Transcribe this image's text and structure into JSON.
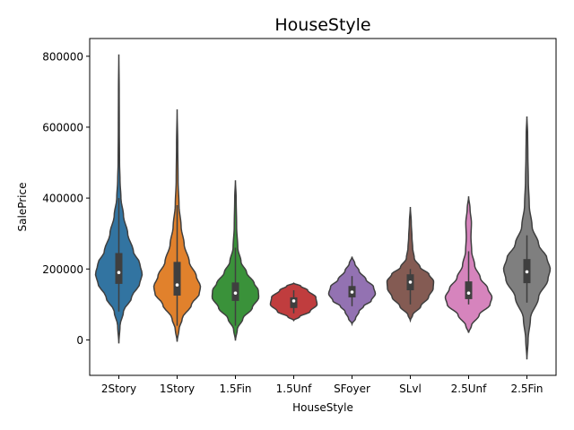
{
  "chart_data": {
    "type": "violin",
    "title": "HouseStyle",
    "xlabel": "HouseStyle",
    "ylabel": "SalePrice",
    "ylim": [
      -100000,
      850000
    ],
    "yticks": [
      0,
      200000,
      400000,
      600000,
      800000
    ],
    "ytick_labels": [
      "0",
      "200000",
      "400000",
      "600000",
      "800000"
    ],
    "grid": false,
    "legend": "none",
    "categories": [
      "2Story",
      "1Story",
      "1.5Fin",
      "1.5Unf",
      "SFoyer",
      "SLvl",
      "2.5Unf",
      "2.5Fin"
    ],
    "colors": [
      "#3274a1",
      "#e1812c",
      "#3a923a",
      "#c03d3e",
      "#9372b2",
      "#845b53",
      "#d684bd",
      "#7f7f7f"
    ],
    "violins": [
      {
        "min": -10000,
        "max": 805000,
        "q1": 158000,
        "median": 190000,
        "q3": 245000,
        "wlo": 80000,
        "whi": 400000,
        "profile": [
          [
            -10000,
            0
          ],
          [
            40000,
            0.05
          ],
          [
            80000,
            0.2
          ],
          [
            120000,
            0.55
          ],
          [
            160000,
            0.9
          ],
          [
            185000,
            1.0
          ],
          [
            215000,
            0.9
          ],
          [
            250000,
            0.62
          ],
          [
            300000,
            0.38
          ],
          [
            350000,
            0.2
          ],
          [
            400000,
            0.09
          ],
          [
            450000,
            0.05
          ],
          [
            500000,
            0.03
          ],
          [
            600000,
            0.02
          ],
          [
            700000,
            0.015
          ],
          [
            805000,
            0
          ]
        ]
      },
      {
        "min": -5000,
        "max": 650000,
        "q1": 125000,
        "median": 155000,
        "q3": 220000,
        "wlo": 40000,
        "whi": 380000,
        "profile": [
          [
            -5000,
            0
          ],
          [
            30000,
            0.08
          ],
          [
            60000,
            0.22
          ],
          [
            100000,
            0.62
          ],
          [
            130000,
            0.95
          ],
          [
            150000,
            1.0
          ],
          [
            180000,
            0.82
          ],
          [
            220000,
            0.52
          ],
          [
            270000,
            0.3
          ],
          [
            320000,
            0.17
          ],
          [
            380000,
            0.08
          ],
          [
            450000,
            0.04
          ],
          [
            550000,
            0.025
          ],
          [
            650000,
            0
          ]
        ]
      },
      {
        "min": -2000,
        "max": 450000,
        "q1": 110000,
        "median": 132000,
        "q3": 162000,
        "wlo": 40000,
        "whi": 260000,
        "profile": [
          [
            -2000,
            0
          ],
          [
            30000,
            0.08
          ],
          [
            60000,
            0.32
          ],
          [
            90000,
            0.72
          ],
          [
            120000,
            1.0
          ],
          [
            140000,
            0.98
          ],
          [
            160000,
            0.8
          ],
          [
            190000,
            0.48
          ],
          [
            220000,
            0.24
          ],
          [
            260000,
            0.1
          ],
          [
            320000,
            0.05
          ],
          [
            400000,
            0.03
          ],
          [
            450000,
            0
          ]
        ]
      },
      {
        "min": 55000,
        "max": 160000,
        "q1": 90000,
        "median": 110000,
        "q3": 120000,
        "wlo": 75000,
        "whi": 140000,
        "profile": [
          [
            55000,
            0
          ],
          [
            65000,
            0.25
          ],
          [
            80000,
            0.7
          ],
          [
            100000,
            1.0
          ],
          [
            120000,
            0.95
          ],
          [
            140000,
            0.6
          ],
          [
            152000,
            0.3
          ],
          [
            160000,
            0
          ]
        ]
      },
      {
        "min": 45000,
        "max": 235000,
        "q1": 120000,
        "median": 135000,
        "q3": 152000,
        "wlo": 95000,
        "whi": 180000,
        "profile": [
          [
            45000,
            0
          ],
          [
            60000,
            0.15
          ],
          [
            80000,
            0.3
          ],
          [
            95000,
            0.5
          ],
          [
            110000,
            0.82
          ],
          [
            130000,
            1.0
          ],
          [
            150000,
            0.92
          ],
          [
            170000,
            0.6
          ],
          [
            195000,
            0.3
          ],
          [
            215000,
            0.12
          ],
          [
            235000,
            0
          ]
        ]
      },
      {
        "min": 55000,
        "max": 375000,
        "q1": 140000,
        "median": 163000,
        "q3": 185000,
        "wlo": 100000,
        "whi": 200000,
        "profile": [
          [
            55000,
            0
          ],
          [
            70000,
            0.1
          ],
          [
            95000,
            0.45
          ],
          [
            120000,
            0.78
          ],
          [
            145000,
            0.98
          ],
          [
            165000,
            1.0
          ],
          [
            185000,
            0.8
          ],
          [
            205000,
            0.42
          ],
          [
            230000,
            0.17
          ],
          [
            260000,
            0.1
          ],
          [
            290000,
            0.07
          ],
          [
            330000,
            0.04
          ],
          [
            375000,
            0
          ]
        ]
      },
      {
        "min": 20000,
        "max": 405000,
        "q1": 115000,
        "median": 132000,
        "q3": 165000,
        "wlo": 100000,
        "whi": 250000,
        "profile": [
          [
            20000,
            0
          ],
          [
            40000,
            0.12
          ],
          [
            70000,
            0.45
          ],
          [
            100000,
            0.92
          ],
          [
            120000,
            1.0
          ],
          [
            145000,
            0.82
          ],
          [
            175000,
            0.5
          ],
          [
            210000,
            0.26
          ],
          [
            250000,
            0.13
          ],
          [
            290000,
            0.1
          ],
          [
            330000,
            0.12
          ],
          [
            370000,
            0.06
          ],
          [
            405000,
            0
          ]
        ]
      },
      {
        "min": -55000,
        "max": 630000,
        "q1": 160000,
        "median": 192000,
        "q3": 228000,
        "wlo": 105000,
        "whi": 295000,
        "profile": [
          [
            -55000,
            0
          ],
          [
            0,
            0.05
          ],
          [
            60000,
            0.15
          ],
          [
            120000,
            0.5
          ],
          [
            170000,
            0.9
          ],
          [
            200000,
            1.0
          ],
          [
            230000,
            0.86
          ],
          [
            270000,
            0.5
          ],
          [
            320000,
            0.22
          ],
          [
            380000,
            0.1
          ],
          [
            450000,
            0.06
          ],
          [
            520000,
            0.04
          ],
          [
            580000,
            0.03
          ],
          [
            630000,
            0
          ]
        ]
      }
    ]
  }
}
